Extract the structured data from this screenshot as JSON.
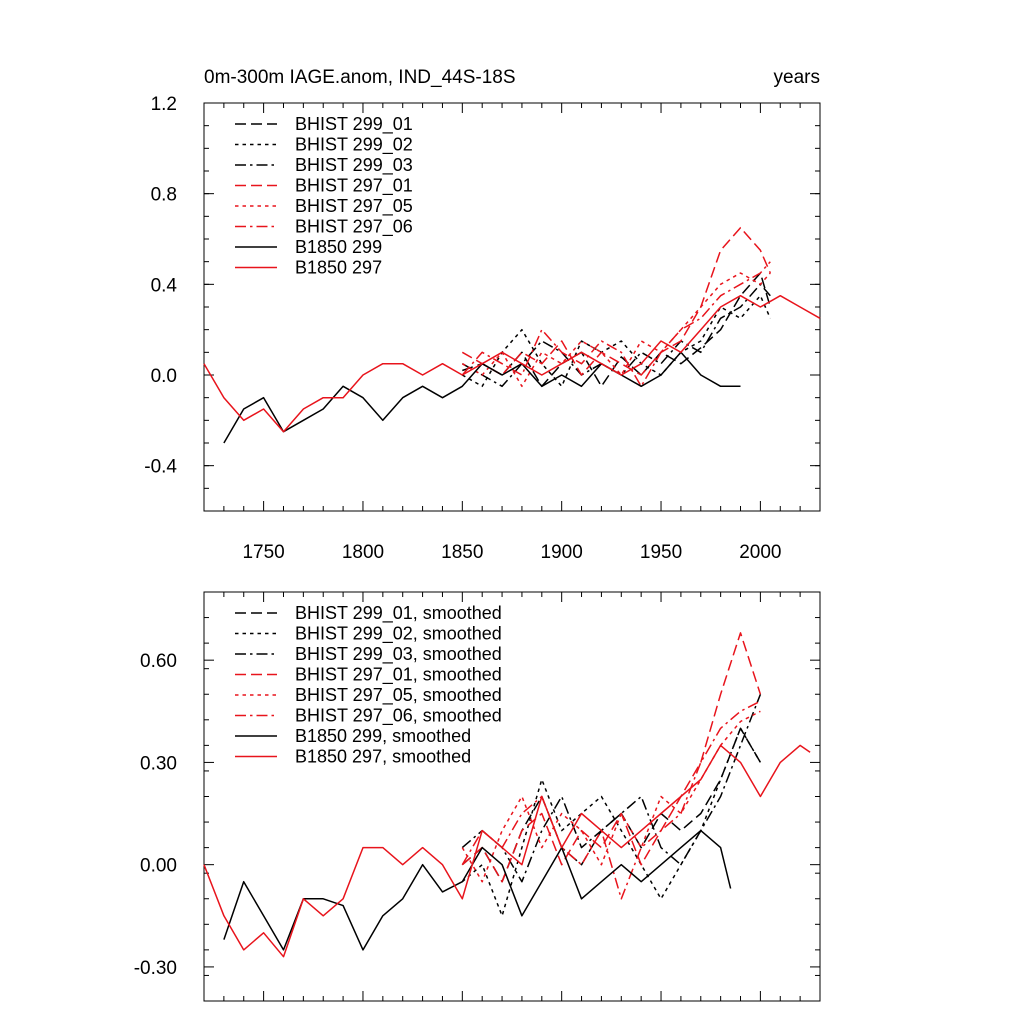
{
  "title_left": "0m-300m IAGE.anom, IND_44S-18S",
  "title_right": "years",
  "colors": {
    "black": "#000000",
    "red": "#e8141c"
  },
  "chart_data": [
    {
      "type": "line",
      "title": "0m-300m IAGE.anom, IND_44S-18S",
      "xlim": [
        1720,
        2030
      ],
      "ylim": [
        -0.6,
        1.2
      ],
      "yticks": [
        -0.4,
        0.0,
        0.4,
        0.8,
        1.2
      ],
      "ytick_labels": [
        "-0.4",
        "0.0",
        "0.4",
        "0.8",
        "1.2"
      ],
      "xticks": [
        1750,
        1800,
        1850,
        1900,
        1950,
        2000
      ],
      "xtick_labels": [
        "1750",
        "1800",
        "1850",
        "1900",
        "1950",
        "2000"
      ],
      "legend": "top-left",
      "series": [
        {
          "name": "BHIST 299_01",
          "color": "#000000",
          "dash": "dash",
          "x": [
            1850,
            1860,
            1870,
            1880,
            1890,
            1900,
            1910,
            1920,
            1930,
            1940,
            1950,
            1960,
            1970,
            1980,
            1990,
            2000,
            2005
          ],
          "values": [
            0.02,
            0.05,
            0.0,
            0.1,
            -0.05,
            0.05,
            0.1,
            -0.05,
            0.08,
            0.0,
            0.1,
            0.05,
            0.12,
            0.2,
            0.35,
            0.45,
            0.3
          ]
        },
        {
          "name": "BHIST 299_02",
          "color": "#000000",
          "dash": "dot",
          "x": [
            1850,
            1860,
            1870,
            1880,
            1890,
            1900,
            1910,
            1920,
            1930,
            1940,
            1950,
            1960,
            1970,
            1980,
            1990,
            2000,
            2005
          ],
          "values": [
            0.0,
            -0.05,
            0.1,
            0.2,
            0.05,
            -0.05,
            0.15,
            0.1,
            0.15,
            0.05,
            0.0,
            0.1,
            0.15,
            0.3,
            0.25,
            0.35,
            0.25
          ]
        },
        {
          "name": "BHIST 299_03",
          "color": "#000000",
          "dash": "dashdot",
          "x": [
            1850,
            1860,
            1870,
            1880,
            1890,
            1900,
            1910,
            1920,
            1930,
            1940,
            1950,
            1960,
            1970,
            1980,
            1990,
            2000,
            2005
          ],
          "values": [
            0.05,
            0.0,
            -0.05,
            0.05,
            0.15,
            0.1,
            0.0,
            0.05,
            0.0,
            0.1,
            0.05,
            0.15,
            0.1,
            0.25,
            0.3,
            0.4,
            0.35
          ]
        },
        {
          "name": "BHIST 297_01",
          "color": "#e8141c",
          "dash": "dash",
          "x": [
            1850,
            1860,
            1870,
            1880,
            1890,
            1900,
            1910,
            1920,
            1930,
            1940,
            1950,
            1960,
            1970,
            1980,
            1990,
            2000,
            2005
          ],
          "values": [
            0.1,
            0.05,
            0.0,
            0.1,
            0.05,
            0.15,
            0.0,
            0.1,
            0.05,
            0.0,
            0.1,
            0.15,
            0.3,
            0.55,
            0.65,
            0.55,
            0.45
          ]
        },
        {
          "name": "BHIST 297_05",
          "color": "#e8141c",
          "dash": "dot",
          "x": [
            1850,
            1860,
            1870,
            1880,
            1890,
            1900,
            1910,
            1920,
            1930,
            1940,
            1950,
            1960,
            1970,
            1980,
            1990,
            2000,
            2005
          ],
          "values": [
            0.05,
            0.0,
            0.1,
            -0.05,
            0.1,
            0.05,
            0.15,
            0.1,
            0.0,
            0.15,
            0.1,
            0.2,
            0.3,
            0.4,
            0.45,
            0.4,
            0.45
          ]
        },
        {
          "name": "BHIST 297_06",
          "color": "#e8141c",
          "dash": "dashdot",
          "x": [
            1850,
            1860,
            1870,
            1880,
            1890,
            1900,
            1910,
            1920,
            1930,
            1940,
            1950,
            1960,
            1970,
            1980,
            1990,
            2000,
            2005
          ],
          "values": [
            0.0,
            0.1,
            0.05,
            0.0,
            0.2,
            0.1,
            0.05,
            0.15,
            0.1,
            -0.05,
            0.1,
            0.2,
            0.25,
            0.35,
            0.4,
            0.45,
            0.5
          ]
        },
        {
          "name": "B1850 299",
          "color": "#000000",
          "dash": "solid",
          "x": [
            1730,
            1740,
            1750,
            1760,
            1770,
            1780,
            1790,
            1800,
            1810,
            1820,
            1830,
            1840,
            1850,
            1860,
            1870,
            1880,
            1890,
            1900,
            1910,
            1920,
            1930,
            1940,
            1950,
            1960,
            1970,
            1980,
            1990
          ],
          "values": [
            -0.3,
            -0.15,
            -0.1,
            -0.25,
            -0.2,
            -0.15,
            -0.05,
            -0.1,
            -0.2,
            -0.1,
            -0.05,
            -0.1,
            -0.05,
            0.05,
            0.0,
            0.05,
            -0.05,
            0.0,
            -0.05,
            0.05,
            0.0,
            -0.05,
            0.0,
            0.1,
            0.0,
            -0.05,
            -0.05
          ]
        },
        {
          "name": "B1850 297",
          "color": "#e8141c",
          "dash": "solid",
          "x": [
            1720,
            1730,
            1740,
            1750,
            1760,
            1770,
            1780,
            1790,
            1800,
            1810,
            1820,
            1830,
            1840,
            1850,
            1860,
            1870,
            1880,
            1890,
            1900,
            1910,
            1920,
            1930,
            1940,
            1950,
            1960,
            1970,
            1980,
            1990,
            2000,
            2010,
            2020,
            2030
          ],
          "values": [
            0.05,
            -0.1,
            -0.2,
            -0.15,
            -0.25,
            -0.15,
            -0.1,
            -0.1,
            0.0,
            0.05,
            0.05,
            0.0,
            0.05,
            0.0,
            0.05,
            0.1,
            0.05,
            0.0,
            0.05,
            0.1,
            0.05,
            0.0,
            0.05,
            0.15,
            0.1,
            0.2,
            0.3,
            0.35,
            0.3,
            0.35,
            0.3,
            0.25
          ]
        }
      ]
    },
    {
      "type": "line",
      "title": "",
      "xlim": [
        1720,
        2030
      ],
      "ylim": [
        -0.4,
        0.8
      ],
      "yticks": [
        -0.3,
        0.0,
        0.3,
        0.6
      ],
      "ytick_labels": [
        "-0.30",
        "0.00",
        "0.30",
        "0.60"
      ],
      "xticks": [
        1750,
        1800,
        1850,
        1900,
        1950,
        2000
      ],
      "legend": "top-left",
      "series": [
        {
          "name": "BHIST 299_01, smoothed",
          "color": "#000000",
          "dash": "dash",
          "x": [
            1850,
            1860,
            1870,
            1880,
            1890,
            1900,
            1910,
            1920,
            1930,
            1940,
            1950,
            1960,
            1970,
            1980,
            1990,
            2000
          ],
          "values": [
            0.0,
            0.05,
            -0.05,
            0.1,
            0.2,
            0.05,
            0.0,
            0.1,
            0.15,
            0.05,
            0.15,
            0.1,
            0.15,
            0.25,
            0.4,
            0.3
          ]
        },
        {
          "name": "BHIST 299_02, smoothed",
          "color": "#000000",
          "dash": "dot",
          "x": [
            1850,
            1860,
            1870,
            1880,
            1890,
            1900,
            1910,
            1920,
            1930,
            1940,
            1950,
            1960,
            1970,
            1980,
            1990,
            2000
          ],
          "values": [
            -0.05,
            0.0,
            -0.15,
            0.05,
            0.25,
            0.1,
            0.15,
            0.2,
            0.1,
            0.0,
            -0.1,
            0.0,
            0.1,
            0.25,
            0.4,
            0.3
          ]
        },
        {
          "name": "BHIST 299_03, smoothed",
          "color": "#000000",
          "dash": "dashdot",
          "x": [
            1850,
            1860,
            1870,
            1880,
            1890,
            1900,
            1910,
            1920,
            1930,
            1940,
            1950,
            1960,
            1970,
            1980,
            1990,
            2000
          ],
          "values": [
            0.05,
            0.1,
            0.05,
            -0.05,
            0.1,
            0.2,
            0.05,
            0.1,
            0.15,
            0.2,
            0.05,
            0.0,
            0.1,
            0.2,
            0.35,
            0.5
          ]
        },
        {
          "name": "BHIST 297_01, smoothed",
          "color": "#e8141c",
          "dash": "dash",
          "x": [
            1850,
            1860,
            1870,
            1880,
            1890,
            1900,
            1910,
            1920,
            1930,
            1940,
            1950,
            1960,
            1970,
            1980,
            1990,
            2000
          ],
          "values": [
            0.0,
            0.05,
            -0.05,
            0.1,
            0.15,
            0.0,
            0.1,
            0.05,
            0.15,
            0.0,
            0.1,
            0.2,
            0.3,
            0.5,
            0.68,
            0.5
          ]
        },
        {
          "name": "BHIST 297_05, smoothed",
          "color": "#e8141c",
          "dash": "dot",
          "x": [
            1850,
            1860,
            1870,
            1880,
            1890,
            1900,
            1910,
            1920,
            1930,
            1940,
            1950,
            1960,
            1970,
            1980,
            1990,
            2000
          ],
          "values": [
            0.05,
            -0.05,
            0.1,
            0.2,
            0.05,
            0.15,
            0.1,
            0.0,
            0.15,
            0.05,
            0.2,
            0.15,
            0.25,
            0.35,
            0.42,
            0.45
          ]
        },
        {
          "name": "BHIST 297_06, smoothed",
          "color": "#e8141c",
          "dash": "dashdot",
          "x": [
            1850,
            1860,
            1870,
            1880,
            1890,
            1900,
            1910,
            1920,
            1930,
            1940,
            1950,
            1960,
            1970,
            1980,
            1990,
            2000
          ],
          "values": [
            0.0,
            0.1,
            0.05,
            0.15,
            0.2,
            0.05,
            0.0,
            0.1,
            -0.1,
            0.05,
            0.1,
            0.15,
            0.3,
            0.4,
            0.45,
            0.48
          ]
        },
        {
          "name": "B1850 299, smoothed",
          "color": "#000000",
          "dash": "solid",
          "x": [
            1730,
            1740,
            1750,
            1760,
            1770,
            1780,
            1790,
            1800,
            1810,
            1820,
            1830,
            1840,
            1850,
            1860,
            1870,
            1880,
            1890,
            1900,
            1910,
            1920,
            1930,
            1940,
            1950,
            1960,
            1970,
            1980,
            1985
          ],
          "values": [
            -0.22,
            -0.05,
            -0.15,
            -0.25,
            -0.1,
            -0.1,
            -0.12,
            -0.25,
            -0.15,
            -0.1,
            0.0,
            -0.08,
            -0.05,
            0.05,
            0.0,
            -0.15,
            -0.05,
            0.05,
            -0.1,
            -0.05,
            0.0,
            -0.05,
            0.0,
            0.05,
            0.1,
            0.05,
            -0.07
          ]
        },
        {
          "name": "B1850 297, smoothed",
          "color": "#e8141c",
          "dash": "solid",
          "x": [
            1720,
            1730,
            1740,
            1750,
            1760,
            1770,
            1780,
            1790,
            1800,
            1810,
            1820,
            1830,
            1840,
            1850,
            1860,
            1870,
            1880,
            1890,
            1900,
            1910,
            1920,
            1930,
            1940,
            1950,
            1960,
            1970,
            1980,
            1990,
            2000,
            2010,
            2020,
            2025
          ],
          "values": [
            0.0,
            -0.15,
            -0.25,
            -0.2,
            -0.27,
            -0.1,
            -0.15,
            -0.1,
            0.05,
            0.05,
            0.0,
            0.05,
            0.0,
            -0.1,
            0.1,
            0.05,
            0.0,
            0.2,
            0.05,
            0.15,
            0.1,
            0.05,
            0.1,
            0.15,
            0.2,
            0.25,
            0.35,
            0.3,
            0.2,
            0.3,
            0.35,
            0.33
          ]
        }
      ]
    }
  ]
}
